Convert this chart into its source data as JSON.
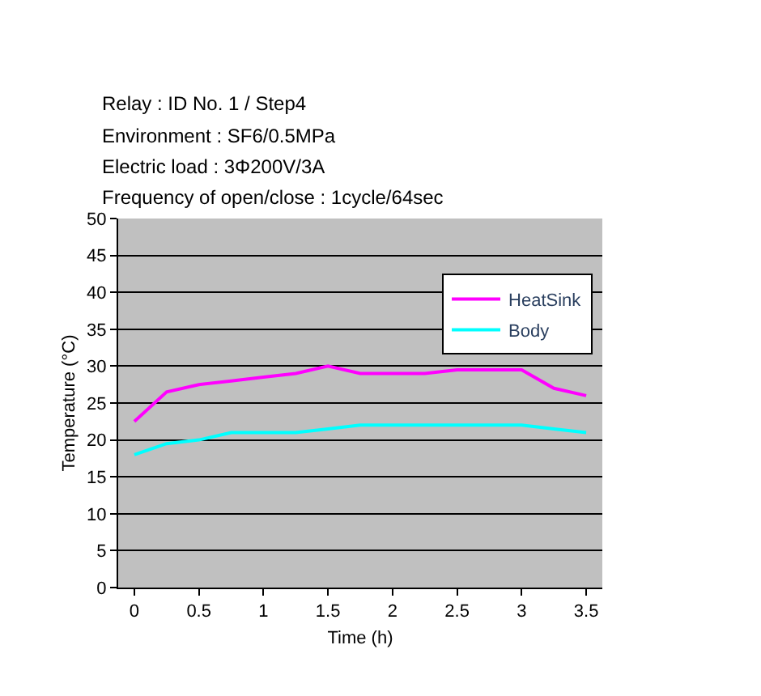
{
  "chart_data": {
    "type": "line",
    "title": "Relay : ID No. 1 / Step4",
    "annotations": [
      "Environment : SF6/0.5MPa",
      "Electric load : 3Φ200V/3A",
      "Frequency of open/close : 1cycle/64sec"
    ],
    "xlabel": "Time (h)",
    "ylabel": "Temperature (°C)",
    "x": [
      0,
      0.25,
      0.5,
      0.75,
      1,
      1.25,
      1.5,
      1.75,
      2,
      2.25,
      2.5,
      2.75,
      3,
      3.25,
      3.5
    ],
    "series": [
      {
        "name": "HeatSink",
        "color": "#ff00ff",
        "values": [
          22.5,
          26.5,
          27.5,
          28,
          28.5,
          29,
          30,
          29,
          29,
          29,
          29.5,
          29.5,
          29.5,
          27,
          26
        ]
      },
      {
        "name": "Body",
        "color": "#00ffff",
        "values": [
          18,
          19.5,
          20,
          21,
          21,
          21,
          21.5,
          22,
          22,
          22,
          22,
          22,
          22,
          21.5,
          21
        ]
      }
    ],
    "xlim": [
      -0.125,
      3.625
    ],
    "xticks": [
      0,
      0.5,
      1,
      1.5,
      2,
      2.5,
      3,
      3.5
    ],
    "ylim": [
      0,
      50
    ],
    "yticks": [
      0,
      5,
      10,
      15,
      20,
      25,
      30,
      35,
      40,
      45,
      50
    ],
    "grid": "y",
    "legend": "top right",
    "marker": "none",
    "line_style": "solid"
  }
}
